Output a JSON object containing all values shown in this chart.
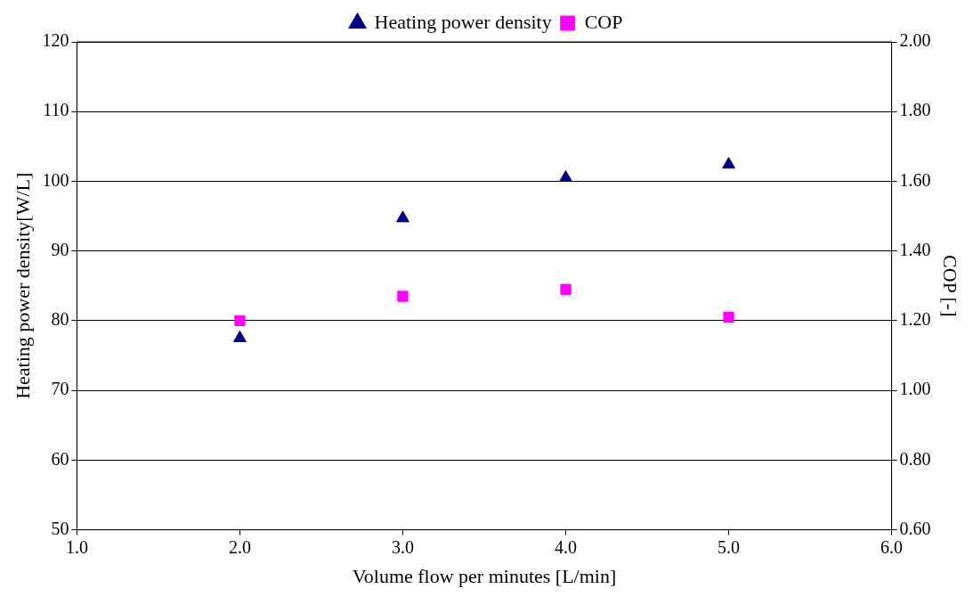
{
  "chart_data": {
    "type": "scatter",
    "xlabel": "Volume flow per minutes [L/min]",
    "ylabel": "Heating power density[W/L]",
    "y2label": "COP [-]",
    "x": [
      2,
      3,
      4,
      5
    ],
    "series": [
      {
        "name": "Heating power density",
        "color": "#000080",
        "marker": "triangle",
        "values": [
          77.5,
          94.7,
          100.5,
          102.4
        ]
      },
      {
        "name": "COP",
        "color": "#ff00ff",
        "marker": "square",
        "axis": "y2",
        "values": [
          1.2,
          1.27,
          1.29,
          1.21
        ]
      }
    ],
    "xlim": [
      1,
      6
    ],
    "xticks": [
      {
        "value": 1,
        "label": "1.0"
      },
      {
        "value": 2,
        "label": "2.0"
      },
      {
        "value": 3,
        "label": "3.0"
      },
      {
        "value": 4,
        "label": "4.0"
      },
      {
        "value": 5,
        "label": "5.0"
      },
      {
        "value": 6,
        "label": "6.0"
      }
    ],
    "ylim": [
      50,
      120
    ],
    "yticks": [
      50,
      60,
      70,
      80,
      90,
      100,
      110,
      120
    ],
    "y2lim": [
      0.6,
      2
    ],
    "y2ticks": [
      {
        "value": 0.6,
        "label": "0.60"
      },
      {
        "value": 0.8,
        "label": "0.80"
      },
      {
        "value": 1,
        "label": "1.00"
      },
      {
        "value": 1.2,
        "label": "1.20"
      },
      {
        "value": 1.4,
        "label": "1.40"
      },
      {
        "value": 1.6,
        "label": "1.60"
      },
      {
        "value": 1.8,
        "label": "1.80"
      },
      {
        "value": 2,
        "label": "2.00"
      }
    ],
    "grid": "y",
    "legend": "top"
  }
}
